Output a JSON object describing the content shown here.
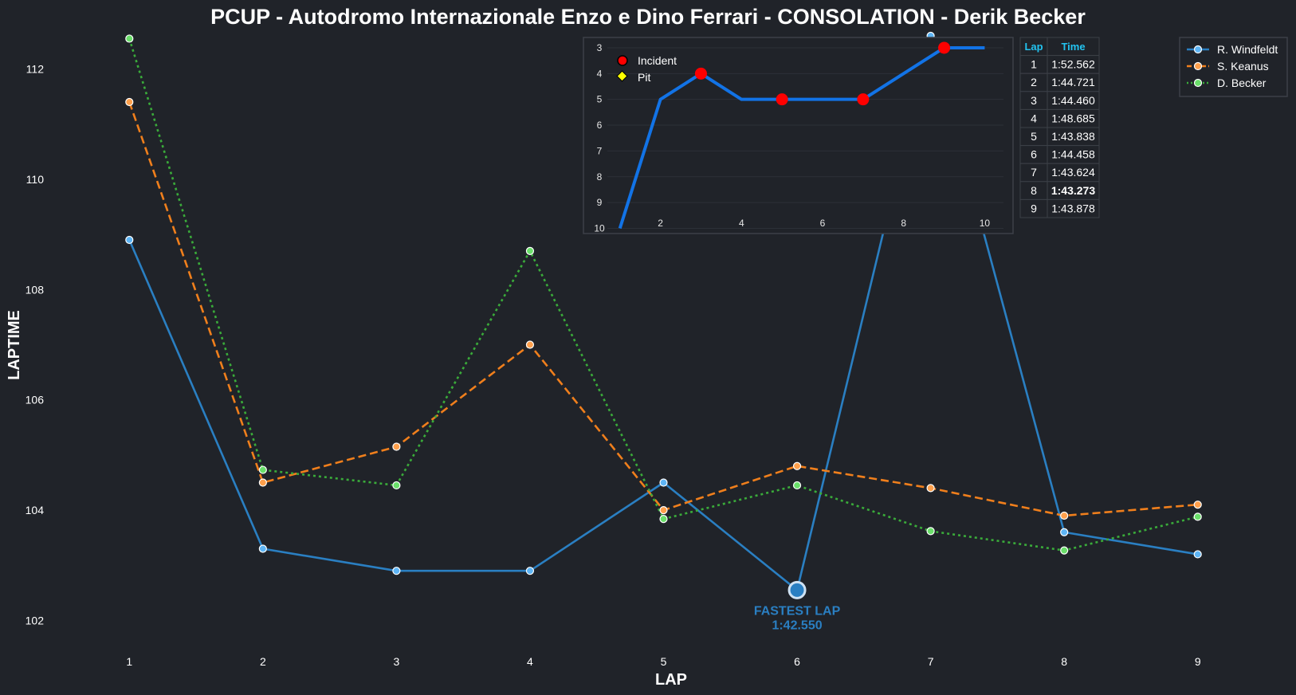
{
  "colors": {
    "background": "#202329",
    "series": [
      "#2a7fc2",
      "#f07f1c",
      "#3aab3a"
    ],
    "marker_fill": [
      "#5eb5f5",
      "#ffa04c",
      "#6adf6a"
    ],
    "inset_line": "#1273e6",
    "incident": "#ff0000",
    "pit": "#ffff00",
    "table_header": "#22c3f0",
    "table_highlight": "#ffff00"
  },
  "chart_data": [
    {
      "type": "line",
      "title": "PCUP - Autodromo Internazionale Enzo e Dino Ferrari - CONSOLATION - Derik Becker",
      "xlabel": "LAP",
      "ylabel": "LAPTIME",
      "x": [
        1,
        2,
        3,
        4,
        5,
        6,
        7,
        8,
        9
      ],
      "xlim": [
        0.3,
        9.7
      ],
      "ylim": [
        101.4,
        112.6
      ],
      "yticks": [
        102,
        104,
        106,
        108,
        110,
        112
      ],
      "grid": false,
      "legend_position": "top-right",
      "series": [
        {
          "name": "R. Windfeldt",
          "style": "solid",
          "values": [
            108.9,
            103.3,
            102.9,
            102.9,
            104.5,
            102.55,
            112.6,
            103.6,
            103.2
          ]
        },
        {
          "name": "S. Keanus",
          "style": "dashed",
          "values": [
            111.4,
            104.5,
            105.15,
            107.0,
            104.0,
            104.8,
            104.4,
            103.9,
            104.1
          ]
        },
        {
          "name": "D. Becker",
          "style": "dotted",
          "values": [
            112.55,
            104.73,
            104.45,
            108.7,
            103.84,
            104.45,
            103.62,
            103.27,
            103.88
          ]
        }
      ],
      "annotations": {
        "fastest_lap": {
          "lap": 6,
          "value": 102.55,
          "label": "FASTEST LAP",
          "time": "1:42.550"
        }
      }
    },
    {
      "type": "line",
      "title": "",
      "x": [
        1,
        2,
        3,
        4,
        5,
        6,
        7,
        8,
        9,
        10
      ],
      "values": [
        10,
        5,
        4,
        5,
        5,
        5,
        5,
        4,
        3,
        3
      ],
      "xlim": [
        0.1,
        10.7
      ],
      "ylim": [
        10.2,
        2.6
      ],
      "xticks": [
        2,
        4,
        6,
        8,
        10
      ],
      "yticks": [
        3,
        4,
        5,
        6,
        7,
        8,
        9,
        10
      ],
      "y_inverted": true,
      "grid": true,
      "legend": [
        "Incident",
        "Pit"
      ],
      "incidents": [
        {
          "x": 3,
          "y": 4
        },
        {
          "x": 5,
          "y": 5
        },
        {
          "x": 7,
          "y": 5
        },
        {
          "x": 9,
          "y": 3
        }
      ],
      "pits": []
    },
    {
      "type": "table",
      "columns": [
        "Lap",
        "Time"
      ],
      "rows": [
        [
          "1",
          "1:52.562"
        ],
        [
          "2",
          "1:44.721"
        ],
        [
          "3",
          "1:44.460"
        ],
        [
          "4",
          "1:48.685"
        ],
        [
          "5",
          "1:43.838"
        ],
        [
          "6",
          "1:44.458"
        ],
        [
          "7",
          "1:43.624"
        ],
        [
          "8",
          "1:43.273"
        ],
        [
          "9",
          "1:43.878"
        ]
      ],
      "highlight_row": 7
    }
  ]
}
